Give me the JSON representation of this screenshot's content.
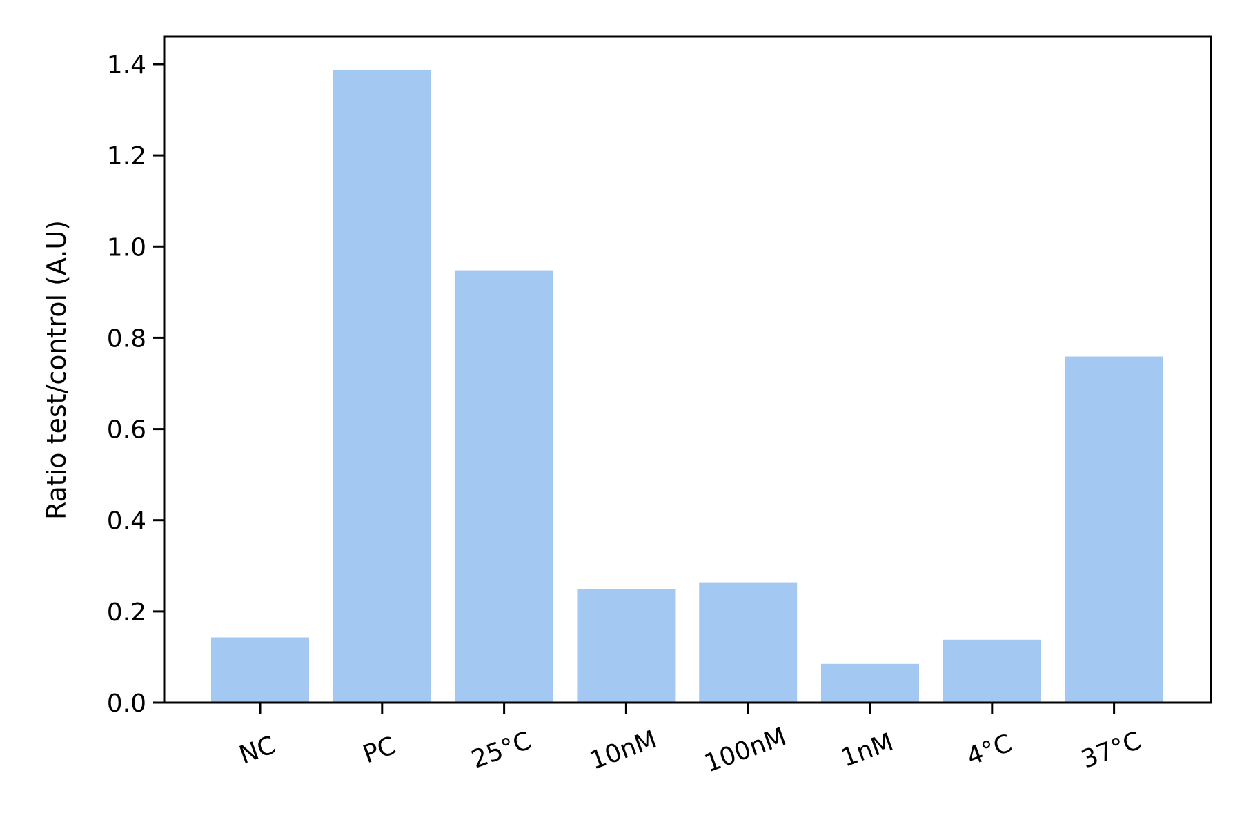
{
  "chart_data": {
    "type": "bar",
    "title": "",
    "xlabel": "",
    "ylabel": "Ratio test/control (A.U)",
    "categories": [
      "NC",
      "PC",
      "25°C",
      "10nM",
      "100nM",
      "1nM",
      "4°C",
      "37°C"
    ],
    "values": [
      0.143,
      1.388,
      0.948,
      0.249,
      0.264,
      0.085,
      0.138,
      0.759
    ],
    "ylim": [
      0,
      1.46
    ],
    "yticks": [
      "0.0",
      "0.2",
      "0.4",
      "0.6",
      "0.8",
      "1.0",
      "1.2",
      "1.4"
    ],
    "grid": false,
    "bar_color": "#a3c8f2",
    "x_tick_rotation": "-20deg"
  }
}
